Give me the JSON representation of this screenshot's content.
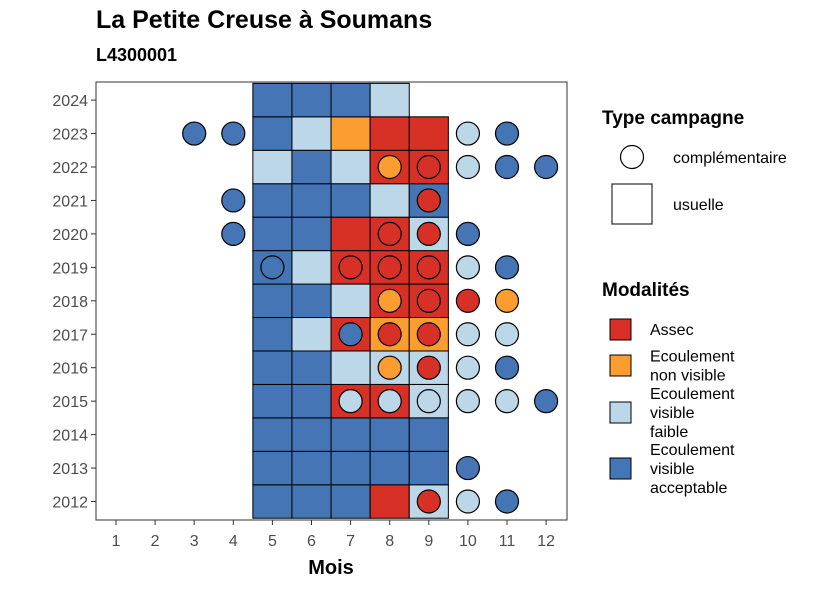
{
  "chart_data": {
    "type": "heatmap",
    "title": "La Petite Creuse à Soumans",
    "subtitle": "L4300001",
    "xlabel": "Mois",
    "ylabel": "",
    "x_ticks": [
      "1",
      "2",
      "3",
      "4",
      "5",
      "6",
      "7",
      "8",
      "9",
      "10",
      "11",
      "12"
    ],
    "y_ticks": [
      "2012",
      "2013",
      "2014",
      "2015",
      "2016",
      "2017",
      "2018",
      "2019",
      "2020",
      "2021",
      "2022",
      "2023",
      "2024"
    ],
    "grid": false,
    "legend_placement": "right",
    "legend_shape": {
      "title": "Type campagne",
      "entries": [
        {
          "label": "complémentaire",
          "shape": "circle"
        },
        {
          "label": "usuelle",
          "shape": "square"
        }
      ]
    },
    "legend_fill": {
      "title": "Modalités",
      "entries": [
        {
          "key": "A",
          "lines": [
            "Assec"
          ],
          "color": "#d73027"
        },
        {
          "key": "N",
          "lines": [
            "Ecoulement",
            "non visible"
          ],
          "color": "#fc9d32"
        },
        {
          "key": "F",
          "lines": [
            "Ecoulement",
            "visible",
            "faible"
          ],
          "color": "#bcd7e8"
        },
        {
          "key": "V",
          "lines": [
            "Ecoulement",
            "visible",
            "acceptable"
          ],
          "color": "#4575b4"
        }
      ]
    },
    "usuelle": {
      "2024": [
        "V",
        "V",
        "V",
        "F",
        ""
      ],
      "2023": [
        "V",
        "F",
        "N",
        "A",
        "A"
      ],
      "2022": [
        "F",
        "V",
        "F",
        "A",
        "A"
      ],
      "2021": [
        "V",
        "V",
        "V",
        "F",
        "V"
      ],
      "2020": [
        "V",
        "V",
        "A",
        "A",
        "F"
      ],
      "2019": [
        "V",
        "F",
        "A",
        "A",
        "A"
      ],
      "2018": [
        "V",
        "V",
        "F",
        "A",
        "A"
      ],
      "2017": [
        "V",
        "F",
        "A",
        "N",
        "N"
      ],
      "2016": [
        "V",
        "V",
        "F",
        "F",
        "F"
      ],
      "2015": [
        "V",
        "V",
        "A",
        "A",
        "F"
      ],
      "2014": [
        "V",
        "V",
        "V",
        "V",
        "V"
      ],
      "2013": [
        "V",
        "V",
        "V",
        "V",
        "V"
      ],
      "2012": [
        "V",
        "V",
        "V",
        "A",
        "F"
      ]
    },
    "usuelle_months": [
      5,
      6,
      7,
      8,
      9
    ],
    "complementaire": [
      {
        "year": 2023,
        "month": 3,
        "mod": "V"
      },
      {
        "year": 2023,
        "month": 4,
        "mod": "V"
      },
      {
        "year": 2023,
        "month": 10,
        "mod": "F"
      },
      {
        "year": 2023,
        "month": 11,
        "mod": "V"
      },
      {
        "year": 2022,
        "month": 8,
        "mod": "N"
      },
      {
        "year": 2022,
        "month": 9,
        "mod": "A"
      },
      {
        "year": 2022,
        "month": 10,
        "mod": "F"
      },
      {
        "year": 2022,
        "month": 11,
        "mod": "V"
      },
      {
        "year": 2022,
        "month": 12,
        "mod": "V"
      },
      {
        "year": 2021,
        "month": 4,
        "mod": "V"
      },
      {
        "year": 2021,
        "month": 9,
        "mod": "A"
      },
      {
        "year": 2020,
        "month": 4,
        "mod": "V"
      },
      {
        "year": 2020,
        "month": 8,
        "mod": "A"
      },
      {
        "year": 2020,
        "month": 9,
        "mod": "A"
      },
      {
        "year": 2020,
        "month": 10,
        "mod": "V"
      },
      {
        "year": 2019,
        "month": 5,
        "mod": "V"
      },
      {
        "year": 2019,
        "month": 7,
        "mod": "A"
      },
      {
        "year": 2019,
        "month": 8,
        "mod": "A"
      },
      {
        "year": 2019,
        "month": 9,
        "mod": "A"
      },
      {
        "year": 2019,
        "month": 10,
        "mod": "F"
      },
      {
        "year": 2019,
        "month": 11,
        "mod": "V"
      },
      {
        "year": 2018,
        "month": 8,
        "mod": "N"
      },
      {
        "year": 2018,
        "month": 9,
        "mod": "A"
      },
      {
        "year": 2018,
        "month": 10,
        "mod": "A"
      },
      {
        "year": 2018,
        "month": 11,
        "mod": "N"
      },
      {
        "year": 2017,
        "month": 7,
        "mod": "V"
      },
      {
        "year": 2017,
        "month": 8,
        "mod": "A"
      },
      {
        "year": 2017,
        "month": 9,
        "mod": "A"
      },
      {
        "year": 2017,
        "month": 10,
        "mod": "F"
      },
      {
        "year": 2017,
        "month": 11,
        "mod": "F"
      },
      {
        "year": 2016,
        "month": 8,
        "mod": "N"
      },
      {
        "year": 2016,
        "month": 9,
        "mod": "A"
      },
      {
        "year": 2016,
        "month": 10,
        "mod": "F"
      },
      {
        "year": 2016,
        "month": 11,
        "mod": "V"
      },
      {
        "year": 2015,
        "month": 7,
        "mod": "F"
      },
      {
        "year": 2015,
        "month": 8,
        "mod": "F"
      },
      {
        "year": 2015,
        "month": 9,
        "mod": "F"
      },
      {
        "year": 2015,
        "month": 10,
        "mod": "F"
      },
      {
        "year": 2015,
        "month": 11,
        "mod": "F"
      },
      {
        "year": 2015,
        "month": 12,
        "mod": "V"
      },
      {
        "year": 2013,
        "month": 10,
        "mod": "V"
      },
      {
        "year": 2012,
        "month": 9,
        "mod": "A"
      },
      {
        "year": 2012,
        "month": 10,
        "mod": "F"
      },
      {
        "year": 2012,
        "month": 11,
        "mod": "V"
      }
    ]
  }
}
